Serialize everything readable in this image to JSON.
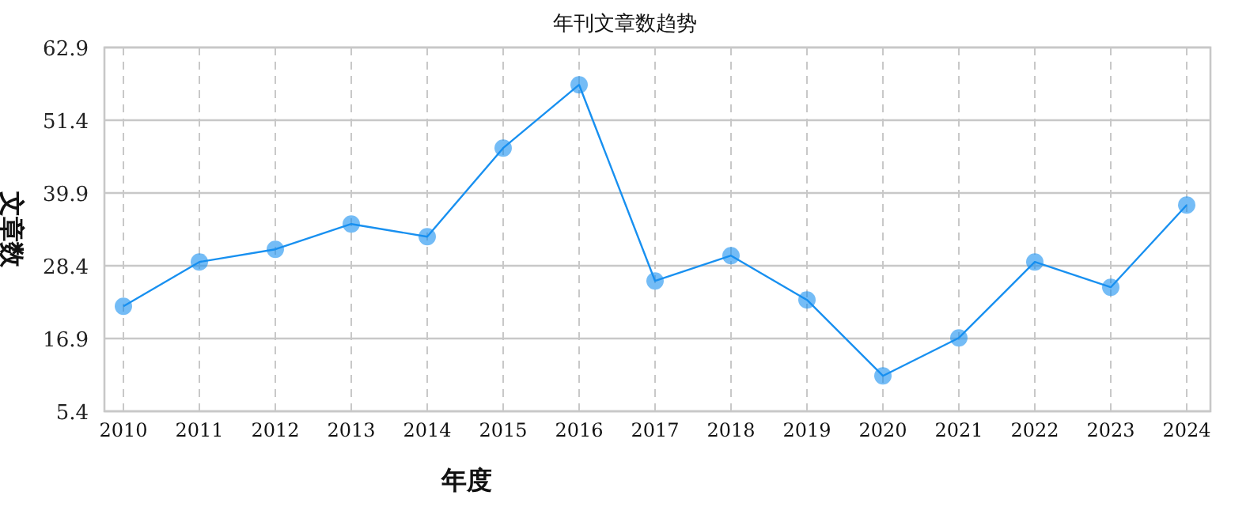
{
  "chart_data": {
    "type": "line",
    "title": "年刊文章数趋势",
    "xlabel": "年度",
    "ylabel": "文章数",
    "categories": [
      "2010",
      "2011",
      "2012",
      "2013",
      "2014",
      "2015",
      "2016",
      "2017",
      "2018",
      "2019",
      "2020",
      "2021",
      "2022",
      "2023",
      "2024"
    ],
    "series": [
      {
        "color": "#1890f0",
        "values": [
          22,
          29,
          31,
          35,
          33,
          47,
          57,
          26,
          30,
          23,
          11,
          17,
          29,
          25,
          38
        ]
      }
    ],
    "ylim": [
      5.4,
      62.9
    ],
    "yticks": [
      5.4,
      16.9,
      28.4,
      39.9,
      51.4,
      62.9
    ],
    "grid": true,
    "marker": "circle",
    "line_style": "solid"
  }
}
